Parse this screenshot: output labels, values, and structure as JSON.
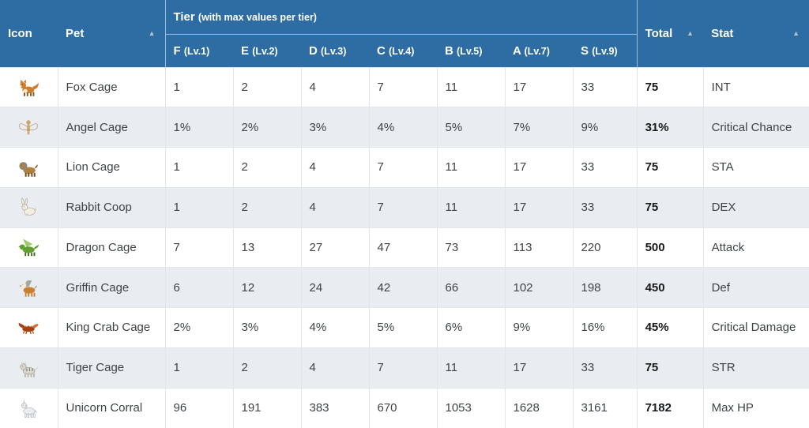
{
  "table": {
    "header": {
      "icon_label": "Icon",
      "pet_label": "Pet",
      "tier_group_title": "Tier",
      "tier_group_note": "(with max values per tier)",
      "tier_columns": [
        {
          "grade": "F",
          "level": "(Lv.1)"
        },
        {
          "grade": "E",
          "level": "(Lv.2)"
        },
        {
          "grade": "D",
          "level": "(Lv.3)"
        },
        {
          "grade": "C",
          "level": "(Lv.4)"
        },
        {
          "grade": "B",
          "level": "(Lv.5)"
        },
        {
          "grade": "A",
          "level": "(Lv.7)"
        },
        {
          "grade": "S",
          "level": "(Lv.9)"
        }
      ],
      "total_label": "Total",
      "stat_label": "Stat",
      "sort_arrow_glyph": "▲"
    },
    "rows": [
      {
        "icon": "fox-icon",
        "pet": "Fox Cage",
        "values": [
          "1",
          "2",
          "4",
          "7",
          "11",
          "17",
          "33"
        ],
        "total": "75",
        "stat": "INT",
        "icon_colors": {
          "primary": "#cd7f2e",
          "secondary": "#f3e7cf",
          "detail": "#8a5a20"
        }
      },
      {
        "icon": "angel-icon",
        "pet": "Angel Cage",
        "values": [
          "1%",
          "2%",
          "3%",
          "4%",
          "5%",
          "7%",
          "9%"
        ],
        "total": "31%",
        "stat": "Critical Chance",
        "icon_colors": {
          "primary": "#c9a36b",
          "secondary": "#efede4",
          "detail": "#8f8b80"
        }
      },
      {
        "icon": "lion-icon",
        "pet": "Lion Cage",
        "values": [
          "1",
          "2",
          "4",
          "7",
          "11",
          "17",
          "33"
        ],
        "total": "75",
        "stat": "STA",
        "icon_colors": {
          "primary": "#b08040",
          "secondary": "#8e857a",
          "detail": "#6b4a1e"
        }
      },
      {
        "icon": "rabbit-icon",
        "pet": "Rabbit Coop",
        "values": [
          "1",
          "2",
          "4",
          "7",
          "11",
          "17",
          "33"
        ],
        "total": "75",
        "stat": "DEX",
        "icon_colors": {
          "primary": "#f2eee3",
          "secondary": "#d9d2bf",
          "detail": "#a39b85"
        }
      },
      {
        "icon": "dragon-icon",
        "pet": "Dragon Cage",
        "values": [
          "7",
          "13",
          "27",
          "47",
          "73",
          "113",
          "220"
        ],
        "total": "500",
        "stat": "Attack",
        "icon_colors": {
          "primary": "#63a02f",
          "secondary": "#9ccc65",
          "detail": "#3e6b1c"
        }
      },
      {
        "icon": "griffin-icon",
        "pet": "Griffin Cage",
        "values": [
          "6",
          "12",
          "24",
          "42",
          "66",
          "102",
          "198"
        ],
        "total": "450",
        "stat": "Def",
        "icon_colors": {
          "primary": "#c87f2e",
          "secondary": "#aaa69b",
          "detail": "#efece2"
        }
      },
      {
        "icon": "king-crab-icon",
        "pet": "King Crab Cage",
        "values": [
          "2%",
          "3%",
          "4%",
          "5%",
          "6%",
          "9%",
          "16%"
        ],
        "total": "45%",
        "stat": "Critical Damage",
        "icon_colors": {
          "primary": "#a8400f",
          "secondary": "#d96a2a",
          "detail": "#7c2b08"
        }
      },
      {
        "icon": "tiger-icon",
        "pet": "Tiger Cage",
        "values": [
          "1",
          "2",
          "4",
          "7",
          "11",
          "17",
          "33"
        ],
        "total": "75",
        "stat": "STR",
        "icon_colors": {
          "primary": "#d9d5ca",
          "secondary": "#bdb8ab",
          "detail": "#77736a"
        }
      },
      {
        "icon": "unicorn-icon",
        "pet": "Unicorn Corral",
        "values": [
          "96",
          "191",
          "383",
          "670",
          "1053",
          "1628",
          "3161"
        ],
        "total": "7182",
        "stat": "Max HP",
        "icon_colors": {
          "primary": "#ebecef",
          "secondary": "#c9cbd4",
          "detail": "#8f929e"
        }
      }
    ]
  },
  "colors": {
    "header_bg": "#2d6da3",
    "header_text": "#ffffff",
    "header_divider": "#9dbbd8",
    "sort_arrow": "#b9c1c7",
    "row_bg": "#ffffff",
    "row_alt_bg": "#e9edf1",
    "cell_border": "#e2e5e9",
    "text": "#3f4347",
    "total_text": "#17191c"
  }
}
